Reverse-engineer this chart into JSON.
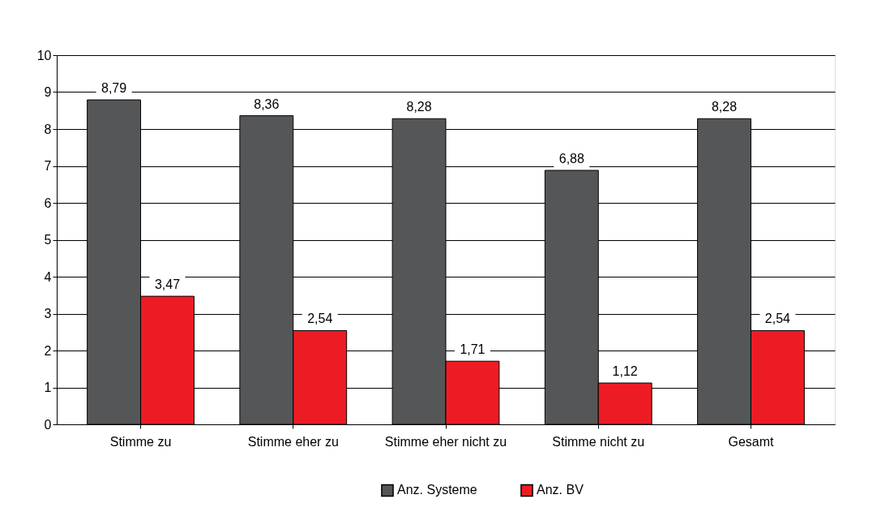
{
  "chart_data": {
    "type": "bar",
    "categories": [
      "Stimme zu",
      "Stimme eher zu",
      "Stimme eher nicht zu",
      "Stimme nicht zu",
      "Gesamt"
    ],
    "series": [
      {
        "name": "Anz. Systeme",
        "color": "#555658",
        "values": [
          8.79,
          8.36,
          8.28,
          6.88,
          8.28
        ],
        "value_labels": [
          "8,79",
          "8,36",
          "8,28",
          "6,88",
          "8,28"
        ]
      },
      {
        "name": "Anz. BV",
        "color": "#ed1c24",
        "values": [
          3.47,
          2.54,
          1.71,
          1.12,
          2.54
        ],
        "value_labels": [
          "3,47",
          "2,54",
          "1,71",
          "1,12",
          "2,54"
        ]
      }
    ],
    "ylim": [
      0,
      10
    ],
    "yticks": [
      0,
      1,
      2,
      3,
      4,
      5,
      6,
      7,
      8,
      9,
      10
    ],
    "grid": "y",
    "legend": "bottom"
  }
}
